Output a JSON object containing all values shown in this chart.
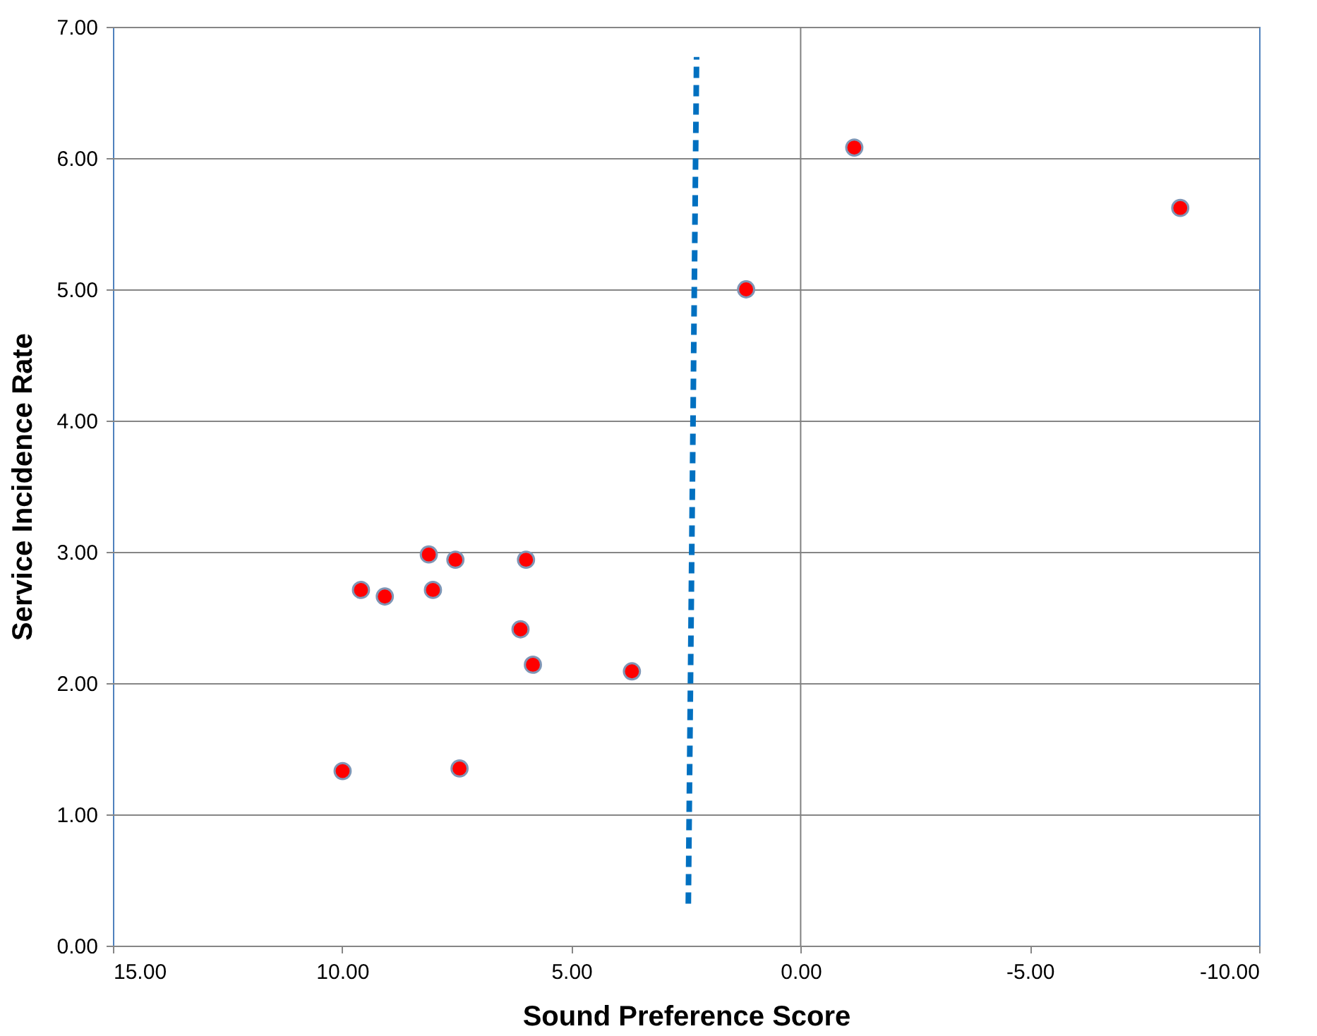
{
  "chart_data": {
    "type": "scatter",
    "xlabel": "Sound Preference Score",
    "ylabel": "Service Incidence Rate",
    "xlim": [
      15,
      -10
    ],
    "ylim": [
      0,
      7
    ],
    "xticks": [
      {
        "value": 15,
        "label": "15.00"
      },
      {
        "value": 10,
        "label": "10.00"
      },
      {
        "value": 5,
        "label": "5.00"
      },
      {
        "value": 0,
        "label": "0.00"
      },
      {
        "value": -5,
        "label": "-5.00"
      },
      {
        "value": -10,
        "label": "-10.00"
      }
    ],
    "yticks": [
      {
        "value": 0,
        "label": "0.00"
      },
      {
        "value": 1,
        "label": "1.00"
      },
      {
        "value": 2,
        "label": "2.00"
      },
      {
        "value": 3,
        "label": "3.00"
      },
      {
        "value": 4,
        "label": "4.00"
      },
      {
        "value": 5,
        "label": "5.00"
      },
      {
        "value": 6,
        "label": "6.00"
      },
      {
        "value": 7,
        "label": "7.00"
      }
    ],
    "grid": "y",
    "marker": "circle",
    "ref_lines": [
      {
        "axis": "x",
        "value": 0,
        "color": "#808080"
      }
    ],
    "series": [
      {
        "color": "#ff0000",
        "x": [
          9.99,
          9.59,
          9.07,
          8.11,
          8.02,
          7.53,
          7.44,
          5.99,
          6.11,
          5.84,
          3.68,
          1.19,
          -1.17,
          -8.28
        ],
        "values": [
          1.33,
          2.71,
          2.66,
          2.98,
          2.71,
          2.94,
          1.35,
          2.94,
          2.41,
          2.14,
          2.09,
          5.0,
          6.08,
          5.62
        ]
      },
      {
        "type": "line",
        "marker": "none",
        "color": "#0070c0",
        "line_style": "dashed",
        "x": [
          2.45,
          2.27
        ],
        "values": [
          0.32,
          6.77
        ]
      }
    ]
  }
}
